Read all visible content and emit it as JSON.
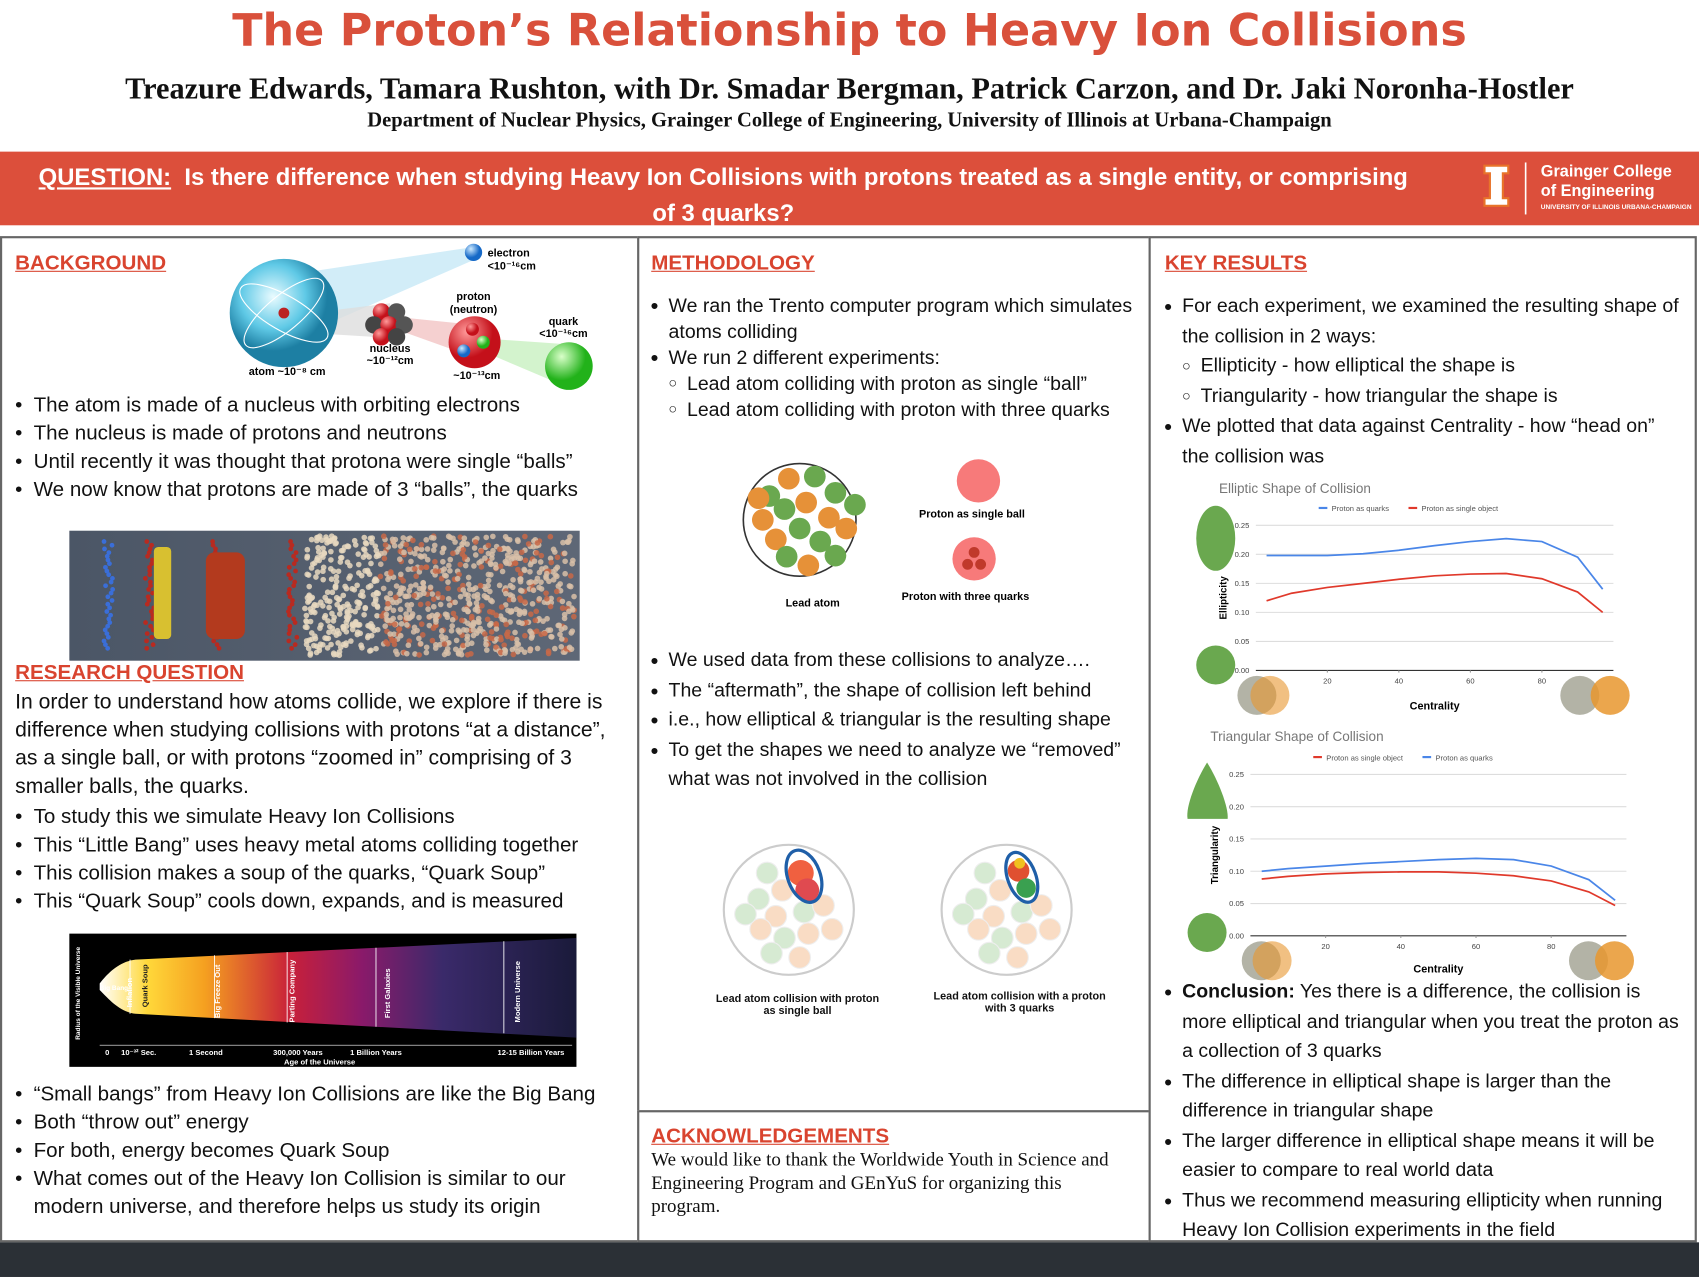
{
  "header": {
    "title": "The Proton’s Relationship to Heavy Ion Collisions",
    "authors": "Treazure Edwards, Tamara Rushton, with Dr. Smadar Bergman, Patrick Carzon, and Dr. Jaki Noronha-Hostler",
    "department": "Department of Nuclear Physics, Grainger College of Engineering, University of Illinois at Urbana-Champaign"
  },
  "banner": {
    "question_label": "QUESTION:",
    "question": "Is there difference when studying Heavy Ion Collisions with protons treated as a single entity, or comprising of 3 quarks?",
    "logo": [
      "Grainger College",
      "of Engineering",
      "UNIVERSITY OF ILLINOIS URBANA-CHAMPAIGN"
    ]
  },
  "background": {
    "heading": "BACKGROUND",
    "diagram_labels": [
      "electron",
      "<10⁻¹⁶cm",
      "proton",
      "(neutron)",
      "quark",
      "<10⁻¹⁶cm",
      "nucleus",
      "~10⁻¹²cm",
      "atom ~10⁻⁸ cm",
      "~10⁻¹³cm"
    ],
    "bullets": [
      "The atom is made of a nucleus with orbiting electrons",
      "The nucleus is made of protons and neutrons",
      "Until recently it was thought that protona were single “balls”",
      "We now know that protons are made of 3 “balls”, the quarks"
    ]
  },
  "research_question": {
    "heading": "RESEARCH QUESTION",
    "intro": "In order to understand how atoms collide, we explore if there is difference when studying collisions with protons “at a distance”, as a single ball, or with protons “zoomed in” comprising of 3 smaller balls, the quarks.",
    "bullets": [
      "To study this we simulate Heavy Ion Collisions",
      "This “Little Bang” uses heavy metal atoms colliding together",
      "This collision makes a soup of the quarks, “Quark Soup”",
      "This “Quark Soup” cools down, expands, and is measured"
    ],
    "timeline_labels": [
      "Big Bang",
      "Inflation",
      "Quark Soup",
      "Big Freeze Out",
      "Parting Company",
      "First Galaxies",
      "Modern Universe",
      "Radius of the Visible Universe",
      "0",
      "10⁻³² Sec.",
      "1 Second",
      "300,000 Years",
      "1 Billion Years",
      "12-15 Billion Years",
      "Age of the Universe"
    ],
    "bullets2": [
      "“Small bangs” from Heavy Ion Collisions are like the Big Bang",
      "Both “throw out” energy",
      "For both, energy becomes Quark Soup",
      "What comes out of the Heavy Ion Collision is similar to our modern universe, and therefore helps us study its origin"
    ]
  },
  "methodology": {
    "heading": "METHODOLOGY",
    "bullets": [
      "We ran the Trento computer program which simulates atoms colliding",
      "We run 2 different experiments:"
    ],
    "sub_bullets": [
      "Lead atom colliding with proton as single “ball”",
      "Lead atom colliding with proton with three quarks"
    ],
    "diagram_labels": [
      "Lead atom",
      "Proton as single ball",
      "Proton with three quarks",
      "Lead atom collision with proton as single ball",
      "Lead atom collision with a proton with 3 quarks"
    ],
    "bullets2": [
      "We used data from these collisions to analyze….",
      "The “aftermath”, the shape of collision left behind",
      "i.e., how elliptical & triangular is the resulting shape",
      "To get the shapes we need to analyze we “removed” what was not involved in the collision"
    ]
  },
  "acknowledgements": {
    "heading": "ACKNOWLEDGEMENTS",
    "text": "We would like to thank the Worldwide Youth in Science and Engineering Program and GEnYuS for organizing this program."
  },
  "key_results": {
    "heading": "KEY RESULTS",
    "bullets": [
      "For each experiment, we examined the resulting shape of the collision in 2 ways:"
    ],
    "sub_bullets": [
      "Ellipticity - how elliptical the shape is",
      "Triangularity - how triangular the shape is"
    ],
    "bullets2": [
      "We plotted that data against Centrality - how “head on” the collision was"
    ],
    "charts": [
      {
        "type": "line",
        "title": "Elliptic Shape of Collision",
        "x_label": "Centrality",
        "y_label": "Ellipticity",
        "x": [
          3,
          10,
          20,
          30,
          40,
          50,
          60,
          70,
          80,
          90,
          97
        ],
        "xlim": [
          0,
          100
        ],
        "ylim": [
          0,
          0.25
        ],
        "xticks": [
          20,
          40,
          60,
          80
        ],
        "yticks": [
          {
            "value": 0,
            "label": "0.00"
          },
          {
            "value": 0.05,
            "label": "0.05"
          },
          {
            "value": 0.1,
            "label": "0.10"
          },
          {
            "value": 0.15,
            "label": "0.15"
          },
          {
            "value": 0.2,
            "label": "0.20"
          },
          {
            "value": 0.25,
            "label": "0.25"
          }
        ],
        "grid": true,
        "legend": "top",
        "series": [
          {
            "name": "Proton as quarks",
            "color": "#4a86e8",
            "values": [
              0.198,
              0.198,
              0.198,
              0.201,
              0.207,
              0.215,
              0.222,
              0.227,
              0.222,
              0.195,
              0.14
            ]
          },
          {
            "name": "Proton as single object",
            "color": "#e0392b",
            "values": [
              0.12,
              0.133,
              0.143,
              0.15,
              0.157,
              0.163,
              0.166,
              0.167,
              0.158,
              0.135,
              0.1
            ]
          }
        ]
      },
      {
        "type": "line",
        "title": "Triangular Shape of Collision",
        "x_label": "Centrality",
        "y_label": "Triangularity",
        "x": [
          3,
          10,
          20,
          30,
          40,
          50,
          60,
          70,
          80,
          90,
          97
        ],
        "xlim": [
          0,
          100
        ],
        "ylim": [
          0,
          0.25
        ],
        "xticks": [
          20,
          40,
          60,
          80
        ],
        "yticks": [
          {
            "value": 0,
            "label": "0.00"
          },
          {
            "value": 0.05,
            "label": "0.05"
          },
          {
            "value": 0.1,
            "label": "0.10"
          },
          {
            "value": 0.15,
            "label": "0.15"
          },
          {
            "value": 0.2,
            "label": "0.20"
          },
          {
            "value": 0.25,
            "label": "0.25"
          }
        ],
        "grid": true,
        "legend": "top",
        "series": [
          {
            "name": "Proton as single object",
            "color": "#e0392b",
            "values": [
              0.088,
              0.092,
              0.096,
              0.098,
              0.099,
              0.099,
              0.097,
              0.093,
              0.085,
              0.068,
              0.047
            ]
          },
          {
            "name": "Proton as quarks",
            "color": "#4a86e8",
            "values": [
              0.1,
              0.104,
              0.108,
              0.112,
              0.115,
              0.118,
              0.12,
              0.118,
              0.108,
              0.087,
              0.055
            ]
          }
        ]
      }
    ],
    "conclusion_label": "Conclusion:",
    "conclusion": "Yes there is a difference, the collision is more elliptical and triangular when you treat the proton as a collection of 3 quarks",
    "bullets3": [
      "The difference in elliptical shape is larger than the difference in triangular shape",
      "The larger difference in elliptical shape means it will be easier to compare to real world data",
      "Thus we recommend measuring ellipticity when running Heavy Ion Collision experiments in the field"
    ]
  }
}
